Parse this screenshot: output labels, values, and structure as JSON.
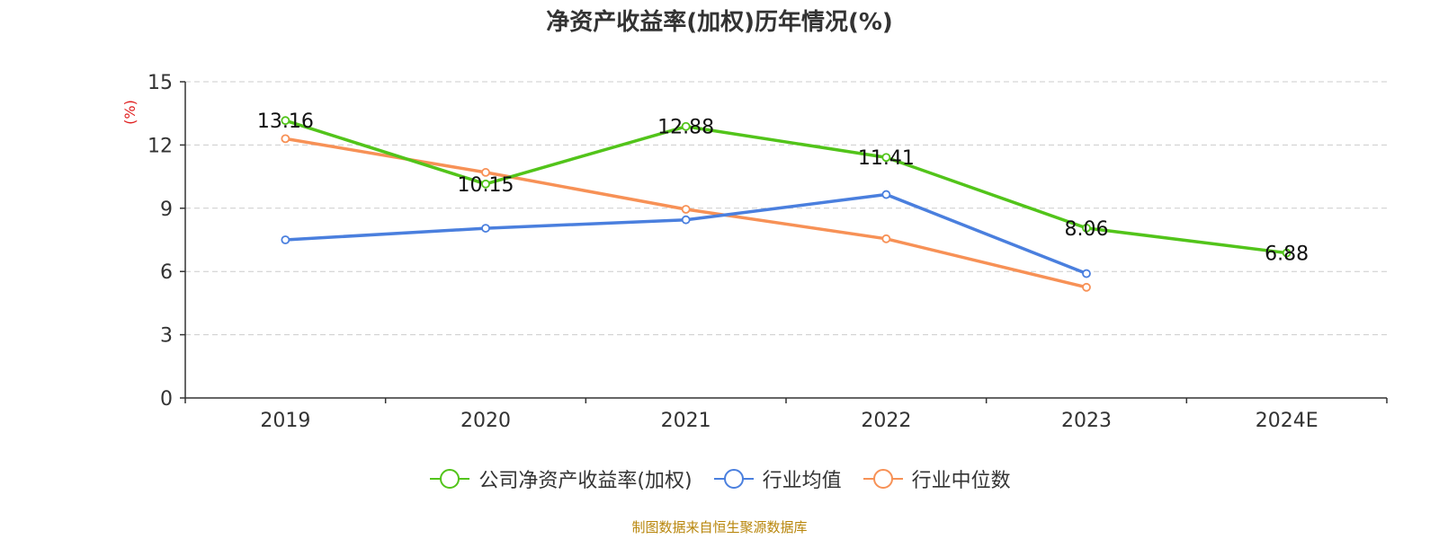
{
  "title": "净资产收益率(加权)历年情况(%)",
  "source": "制图数据来自恒生聚源数据库",
  "chart_data": {
    "type": "line",
    "categories": [
      "2019",
      "2020",
      "2021",
      "2022",
      "2023",
      "2024E"
    ],
    "ylabel": "(%)",
    "ylim": [
      0,
      15
    ],
    "yticks": [
      0,
      3,
      6,
      9,
      12,
      15
    ],
    "grid": true,
    "legend_position": "bottom",
    "series": [
      {
        "name": "公司净资产收益率(加权)",
        "color": "#52c41a",
        "values": [
          13.16,
          10.15,
          12.88,
          11.41,
          8.06,
          6.88
        ],
        "labels": [
          "13.16",
          "10.15",
          "12.88",
          "11.41",
          "8.06",
          "6.88"
        ]
      },
      {
        "name": "行业均值",
        "color": "#4a7fde",
        "values": [
          7.5,
          8.05,
          8.45,
          9.65,
          5.9,
          null
        ]
      },
      {
        "name": "行业中位数",
        "color": "#f79156",
        "values": [
          12.3,
          10.7,
          8.95,
          7.55,
          5.25,
          null
        ]
      }
    ]
  }
}
